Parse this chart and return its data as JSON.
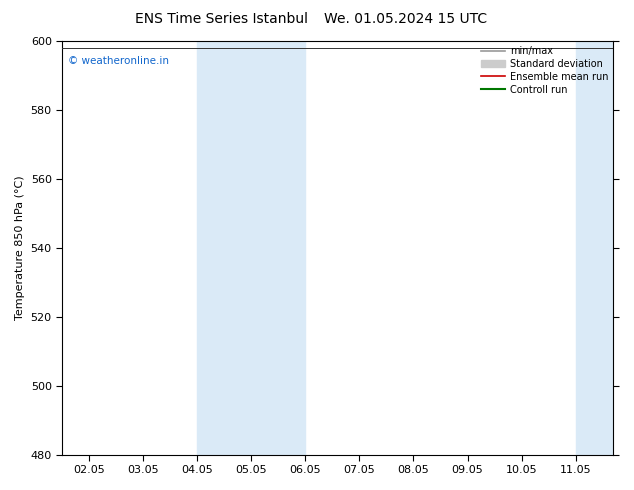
{
  "title": "ENS Time Series Istanbul",
  "title2": "We. 01.05.2024 15 UTC",
  "ylabel": "Temperature 850 hPa (°C)",
  "ylim": [
    480,
    600
  ],
  "yticks": [
    480,
    500,
    520,
    540,
    560,
    580,
    600
  ],
  "x_labels": [
    "02.05",
    "03.05",
    "04.05",
    "05.05",
    "06.05",
    "07.05",
    "08.05",
    "09.05",
    "10.05",
    "11.05"
  ],
  "x_positions": [
    0,
    1,
    2,
    3,
    4,
    5,
    6,
    7,
    8,
    9
  ],
  "xlim": [
    -0.5,
    9.7
  ],
  "shaded_bands": [
    {
      "xmin": 2.0,
      "xmax": 3.0
    },
    {
      "xmin": 3.0,
      "xmax": 4.0
    },
    {
      "xmin": 9.0,
      "xmax": 9.7
    }
  ],
  "shade_color": "#daeaf7",
  "top_line_y": 598,
  "top_line_color": "#333333",
  "watermark": "© weatheronline.in",
  "watermark_color": "#1166cc",
  "legend_items": [
    {
      "label": "min/max",
      "color": "#999999",
      "lw": 1.2,
      "style": "line_with_tick"
    },
    {
      "label": "Standard deviation",
      "color": "#cccccc",
      "lw": 5,
      "style": "box"
    },
    {
      "label": "Ensemble mean run",
      "color": "#cc0000",
      "lw": 1.2,
      "style": "line"
    },
    {
      "label": "Controll run",
      "color": "#007700",
      "lw": 1.5,
      "style": "line"
    }
  ],
  "background_color": "#ffffff",
  "plot_bg_color": "#ffffff",
  "title_fontsize": 10,
  "axis_fontsize": 8,
  "tick_fontsize": 8,
  "font_family": "DejaVu Sans"
}
